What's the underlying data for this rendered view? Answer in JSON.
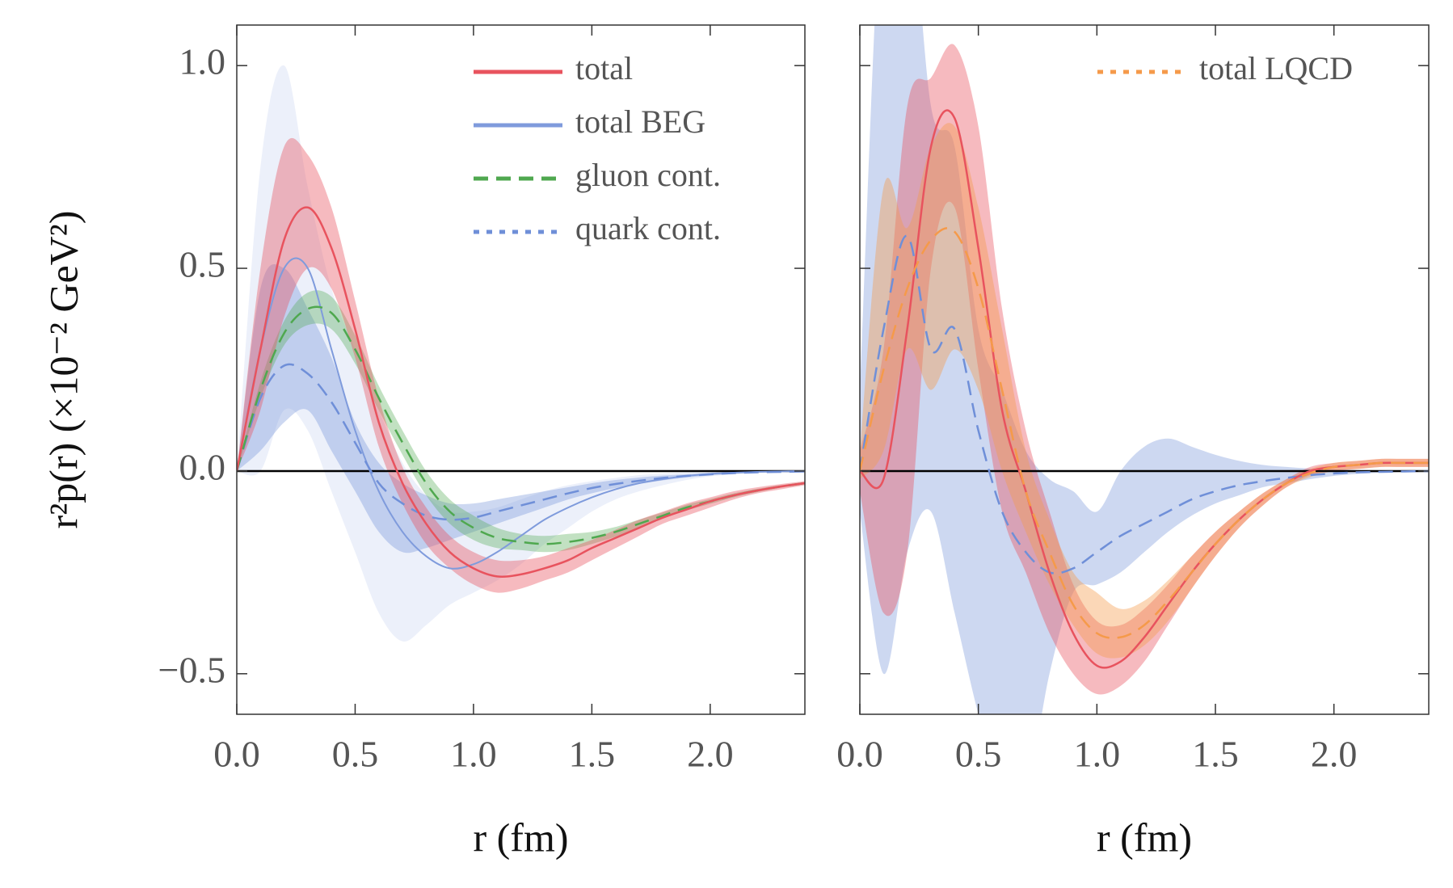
{
  "chart_data": [
    {
      "type": "line",
      "xlabel": "r (fm)",
      "ylabel": "r²p(r) (×10⁻² GeV²)",
      "xlim": [
        0,
        2.4
      ],
      "ylim": [
        -0.6,
        1.1
      ],
      "xticks": [
        {
          "value": 0,
          "label": "0.0"
        },
        0.5,
        {
          "value": 1,
          "label": "1.0"
        },
        1.5,
        {
          "value": 2,
          "label": "2.0"
        }
      ],
      "yticks": [
        {
          "value": -0.5,
          "label": "−0.5"
        },
        {
          "value": 0,
          "label": "0.0"
        },
        0.5,
        {
          "value": 1,
          "label": "1.0"
        }
      ],
      "show_yticklabels": true,
      "axhline": 0,
      "legend": "upper right",
      "x": [
        0,
        0.1,
        0.2,
        0.3,
        0.4,
        0.5,
        0.6,
        0.7,
        0.8,
        0.9,
        1.0,
        1.1,
        1.2,
        1.3,
        1.4,
        1.5,
        1.6,
        1.7,
        1.8,
        1.9,
        2.0,
        2.1,
        2.2,
        2.3,
        2.4
      ],
      "series": [
        {
          "name": "total BEG",
          "color": "#7f9bdc",
          "linestyle": "solid",
          "band_alpha": 0.15,
          "values": [
            0,
            0.3,
            0.5,
            0.5,
            0.3,
            0.1,
            -0.05,
            -0.15,
            -0.21,
            -0.24,
            -0.23,
            -0.2,
            -0.16,
            -0.12,
            -0.09,
            -0.065,
            -0.045,
            -0.03,
            -0.02,
            -0.012,
            -0.007,
            -0.004,
            -0.002,
            -0.001,
            0
          ],
          "upper": [
            0,
            0.75,
            1.0,
            0.7,
            0.45,
            0.3,
            0.15,
            0.02,
            -0.06,
            -0.1,
            -0.1,
            -0.09,
            -0.07,
            -0.05,
            -0.035,
            -0.025,
            -0.017,
            -0.01,
            -0.006,
            -0.003,
            -0.002,
            -0.001,
            0,
            0,
            0
          ],
          "lower": [
            0,
            0,
            0.15,
            0.1,
            -0.05,
            -0.2,
            -0.35,
            -0.42,
            -0.38,
            -0.33,
            -0.3,
            -0.27,
            -0.23,
            -0.18,
            -0.14,
            -0.1,
            -0.07,
            -0.05,
            -0.035,
            -0.022,
            -0.013,
            -0.008,
            -0.004,
            -0.002,
            0
          ]
        },
        {
          "name": "quark cont.",
          "color": "#6f8fd8",
          "linestyle": "dotted",
          "band_alpha": 0.35,
          "values": [
            0,
            0.18,
            0.26,
            0.24,
            0.17,
            0.07,
            -0.03,
            -0.08,
            -0.11,
            -0.12,
            -0.115,
            -0.1,
            -0.085,
            -0.07,
            -0.055,
            -0.042,
            -0.032,
            -0.024,
            -0.017,
            -0.012,
            -0.008,
            -0.005,
            -0.003,
            -0.002,
            -0.001
          ],
          "upper": [
            0,
            0.45,
            0.5,
            0.4,
            0.28,
            0.12,
            0.02,
            -0.03,
            -0.06,
            -0.08,
            -0.08,
            -0.07,
            -0.06,
            -0.05,
            -0.04,
            -0.03,
            -0.022,
            -0.016,
            -0.011,
            -0.008,
            -0.005,
            -0.003,
            -0.002,
            -0.001,
            0
          ],
          "lower": [
            0,
            0.05,
            0.12,
            0.15,
            0.05,
            -0.05,
            -0.15,
            -0.2,
            -0.19,
            -0.17,
            -0.15,
            -0.13,
            -0.11,
            -0.09,
            -0.07,
            -0.055,
            -0.042,
            -0.032,
            -0.023,
            -0.016,
            -0.011,
            -0.007,
            -0.004,
            -0.002,
            -0.001
          ]
        },
        {
          "name": "gluon cont.",
          "color": "#4fa84f",
          "linestyle": "dashed",
          "band_alpha": 0.35,
          "values": [
            0,
            0.2,
            0.34,
            0.4,
            0.39,
            0.3,
            0.18,
            0.07,
            -0.03,
            -0.1,
            -0.14,
            -0.165,
            -0.175,
            -0.18,
            -0.175,
            -0.165,
            -0.15,
            -0.13,
            -0.11,
            -0.09,
            -0.075,
            -0.06,
            -0.048,
            -0.038,
            -0.03
          ],
          "upper": [
            0,
            0.22,
            0.37,
            0.44,
            0.43,
            0.335,
            0.21,
            0.1,
            0,
            -0.07,
            -0.11,
            -0.14,
            -0.155,
            -0.16,
            -0.155,
            -0.15,
            -0.138,
            -0.12,
            -0.102,
            -0.083,
            -0.069,
            -0.055,
            -0.044,
            -0.035,
            -0.027
          ],
          "lower": [
            0,
            0.18,
            0.31,
            0.36,
            0.35,
            0.265,
            0.15,
            0.04,
            -0.06,
            -0.13,
            -0.17,
            -0.19,
            -0.195,
            -0.2,
            -0.195,
            -0.18,
            -0.162,
            -0.14,
            -0.118,
            -0.097,
            -0.081,
            -0.065,
            -0.052,
            -0.041,
            -0.033
          ]
        },
        {
          "name": "total",
          "color": "#e8535e",
          "linestyle": "solid",
          "band_alpha": 0.4,
          "values": [
            0,
            0.3,
            0.57,
            0.65,
            0.55,
            0.35,
            0.12,
            -0.03,
            -0.13,
            -0.2,
            -0.24,
            -0.26,
            -0.255,
            -0.24,
            -0.22,
            -0.19,
            -0.165,
            -0.14,
            -0.115,
            -0.095,
            -0.075,
            -0.06,
            -0.048,
            -0.038,
            -0.03
          ],
          "upper": [
            0,
            0.5,
            0.8,
            0.78,
            0.65,
            0.42,
            0.18,
            0.01,
            -0.09,
            -0.16,
            -0.2,
            -0.22,
            -0.22,
            -0.21,
            -0.19,
            -0.17,
            -0.145,
            -0.12,
            -0.1,
            -0.08,
            -0.065,
            -0.05,
            -0.04,
            -0.032,
            -0.025
          ],
          "lower": [
            0,
            0.15,
            0.38,
            0.5,
            0.45,
            0.28,
            0.06,
            -0.08,
            -0.18,
            -0.24,
            -0.28,
            -0.3,
            -0.29,
            -0.27,
            -0.25,
            -0.22,
            -0.19,
            -0.16,
            -0.13,
            -0.11,
            -0.09,
            -0.07,
            -0.055,
            -0.045,
            -0.035
          ]
        }
      ]
    },
    {
      "type": "line",
      "xlabel": "r (fm)",
      "xlim": [
        0,
        2.4
      ],
      "ylim": [
        -0.6,
        1.1
      ],
      "xticks": [
        {
          "value": 0,
          "label": "0.0"
        },
        0.5,
        {
          "value": 1,
          "label": "1.0"
        },
        1.5,
        {
          "value": 2,
          "label": "2.0"
        }
      ],
      "yticks": [
        -0.5,
        0,
        0.5,
        1
      ],
      "show_yticklabels": false,
      "axhline": 0,
      "legend": "upper right",
      "x": [
        0,
        0.1,
        0.2,
        0.3,
        0.4,
        0.5,
        0.6,
        0.7,
        0.8,
        0.9,
        1.0,
        1.1,
        1.2,
        1.3,
        1.4,
        1.5,
        1.6,
        1.7,
        1.8,
        1.9,
        2.0,
        2.1,
        2.2,
        2.3,
        2.4
      ],
      "series": [
        {
          "color": "#6f8fd8",
          "linestyle": "dashed",
          "band_alpha": 0.35,
          "values": [
            0,
            0.35,
            0.58,
            0.3,
            0.35,
            0.1,
            -0.1,
            -0.2,
            -0.25,
            -0.24,
            -0.2,
            -0.16,
            -0.13,
            -0.1,
            -0.07,
            -0.05,
            -0.035,
            -0.025,
            -0.017,
            -0.01,
            -0.006,
            -0.003,
            -0.002,
            -0.001,
            0
          ],
          "upper": [
            0.2,
            1.5,
            1.5,
            0.9,
            0.8,
            0.35,
            0.2,
            0.05,
            -0.02,
            -0.05,
            -0.1,
            0,
            0.06,
            0.08,
            0.06,
            0.04,
            0.025,
            0.015,
            0.01,
            0.006,
            0.004,
            0.002,
            0.001,
            0,
            0
          ],
          "lower": [
            -0.1,
            -0.5,
            -0.2,
            -0.1,
            -0.35,
            -0.6,
            -0.8,
            -0.8,
            -0.5,
            -0.3,
            -0.28,
            -0.25,
            -0.2,
            -0.15,
            -0.11,
            -0.08,
            -0.06,
            -0.04,
            -0.03,
            -0.02,
            -0.012,
            -0.007,
            -0.004,
            -0.002,
            -0.001
          ]
        },
        {
          "color": "#e8535e",
          "linestyle": "solid",
          "band_alpha": 0.4,
          "values": [
            0,
            -0.02,
            0.35,
            0.8,
            0.87,
            0.55,
            0.15,
            -0.05,
            -0.25,
            -0.4,
            -0.48,
            -0.47,
            -0.41,
            -0.33,
            -0.25,
            -0.18,
            -0.12,
            -0.07,
            -0.03,
            0,
            0.01,
            0.015,
            0.02,
            0.02,
            0.02
          ],
          "upper": [
            0.05,
            0.3,
            0.9,
            0.97,
            1.05,
            0.85,
            0.4,
            0.1,
            -0.1,
            -0.28,
            -0.37,
            -0.38,
            -0.34,
            -0.28,
            -0.21,
            -0.15,
            -0.1,
            -0.055,
            -0.02,
            0.01,
            0.02,
            0.025,
            0.03,
            0.03,
            0.03
          ],
          "lower": [
            -0.05,
            -0.35,
            -0.2,
            0.5,
            0.65,
            0.25,
            -0.1,
            -0.25,
            -0.4,
            -0.5,
            -0.55,
            -0.53,
            -0.47,
            -0.38,
            -0.29,
            -0.21,
            -0.14,
            -0.085,
            -0.04,
            -0.01,
            0,
            0.005,
            0.01,
            0.01,
            0.01
          ]
        },
        {
          "name": "total LQCD",
          "color": "#f59a4a",
          "linestyle": "dotted",
          "band_alpha": 0.4,
          "values": [
            0,
            0.25,
            0.45,
            0.57,
            0.59,
            0.45,
            0.2,
            -0.05,
            -0.2,
            -0.33,
            -0.4,
            -0.41,
            -0.38,
            -0.32,
            -0.25,
            -0.18,
            -0.12,
            -0.07,
            -0.03,
            -0.005,
            0.01,
            0.015,
            0.02,
            0.02,
            0.02
          ],
          "upper": [
            0.05,
            0.7,
            0.6,
            0.8,
            0.85,
            0.65,
            0.35,
            0.05,
            -0.12,
            -0.25,
            -0.3,
            -0.34,
            -0.32,
            -0.27,
            -0.21,
            -0.15,
            -0.1,
            -0.055,
            -0.02,
            0.005,
            0.02,
            0.025,
            0.03,
            0.03,
            0.03
          ],
          "lower": [
            -0.02,
            0.05,
            0.3,
            0.2,
            0.3,
            0.2,
            0,
            -0.15,
            -0.28,
            -0.38,
            -0.45,
            -0.46,
            -0.43,
            -0.37,
            -0.29,
            -0.21,
            -0.14,
            -0.085,
            -0.04,
            -0.015,
            0,
            0.005,
            0.01,
            0.01,
            0.01
          ]
        }
      ]
    }
  ]
}
